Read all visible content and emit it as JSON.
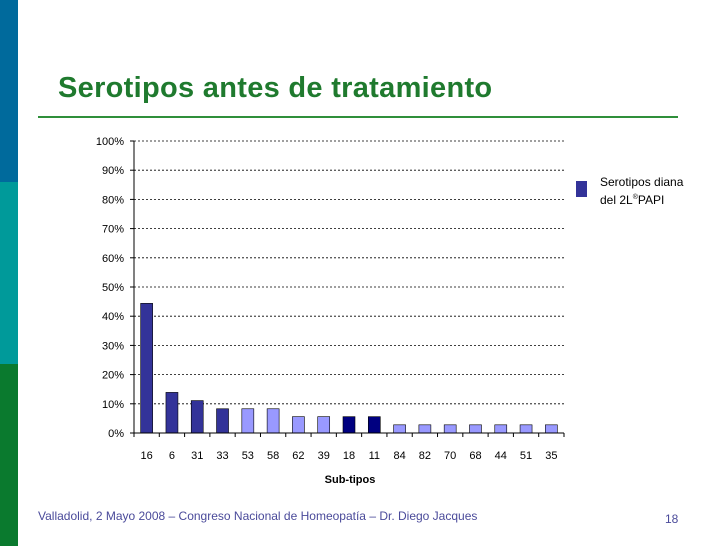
{
  "slide": {
    "title": "Serotipos antes de tratamiento",
    "footer": "Valladolid, 2 Mayo 2008 – Congreso Nacional de Homeopatía – Dr. Diego Jacques",
    "page_number": "18",
    "stripe_colors": [
      "#006a9c",
      "#009a9a",
      "#0a7a2e"
    ],
    "title_color": "#1f7a2e"
  },
  "chart_data": {
    "type": "bar",
    "title": "",
    "xlabel": "Sub-tipos",
    "ylabel": "",
    "ylim": [
      0,
      100
    ],
    "yticks": [
      "0%",
      "10%",
      "20%",
      "30%",
      "40%",
      "50%",
      "60%",
      "70%",
      "80%",
      "90%",
      "100%"
    ],
    "grid": true,
    "legend_position": "right",
    "legend": {
      "line1": "Serotipos diana",
      "line2a": "del 2L",
      "line2sup": "®",
      "line2b": "PAPI"
    },
    "categories": [
      "16",
      "6",
      "31",
      "33",
      "53",
      "58",
      "62",
      "39",
      "18",
      "11",
      "84",
      "82",
      "70",
      "68",
      "44",
      "51",
      "35"
    ],
    "values": [
      44.4,
      13.9,
      11.1,
      8.3,
      8.3,
      8.3,
      5.6,
      5.6,
      5.6,
      5.6,
      2.8,
      2.8,
      2.8,
      2.8,
      2.8,
      2.8,
      2.8
    ],
    "bar_colors": [
      "#333399",
      "#333399",
      "#333399",
      "#333399",
      "#9999ff",
      "#9999ff",
      "#9999ff",
      "#9999ff",
      "#000080",
      "#000080",
      "#9999ff",
      "#9999ff",
      "#9999ff",
      "#9999ff",
      "#9999ff",
      "#9999ff",
      "#9999ff"
    ]
  }
}
